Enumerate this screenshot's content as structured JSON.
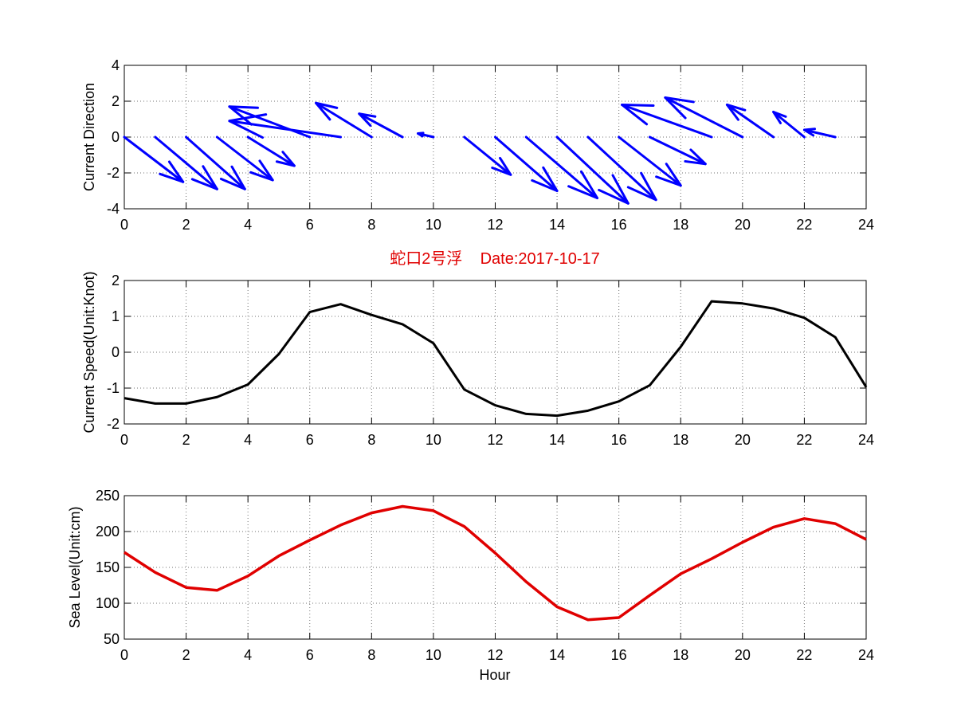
{
  "figure": {
    "title": "蛇口2号浮    Date:2017-10-17"
  },
  "colors": {
    "direction": "#0000ff",
    "speed": "#000000",
    "sealevel": "#e00000",
    "title": "#e00000"
  },
  "chart_data": [
    {
      "type": "quiver",
      "ylabel": "Current Direction",
      "xlabel": "",
      "xlim": [
        0,
        24
      ],
      "ylim": [
        -4,
        4
      ],
      "xticks": [
        0,
        2,
        4,
        6,
        8,
        10,
        12,
        14,
        16,
        18,
        20,
        22,
        24
      ],
      "yticks": [
        -4,
        -2,
        0,
        2,
        4
      ],
      "grid": true,
      "vectors": [
        {
          "x": 0,
          "u": 1.9,
          "v": -2.5
        },
        {
          "x": 1,
          "u": 2.0,
          "v": -2.9
        },
        {
          "x": 2,
          "u": 1.9,
          "v": -2.9
        },
        {
          "x": 3,
          "u": 1.8,
          "v": -2.4
        },
        {
          "x": 4,
          "u": 1.5,
          "v": -1.6
        },
        {
          "x": 5,
          "u": 0.0,
          "v": 0.0
        },
        {
          "x": 6,
          "u": -2.6,
          "v": 1.7
        },
        {
          "x": 7,
          "u": -3.6,
          "v": 0.9
        },
        {
          "x": 8,
          "u": -1.8,
          "v": 1.9
        },
        {
          "x": 9,
          "u": -1.4,
          "v": 1.3
        },
        {
          "x": 10,
          "u": -0.5,
          "v": 0.2
        },
        {
          "x": 11,
          "u": 1.5,
          "v": -2.1
        },
        {
          "x": 12,
          "u": 2.0,
          "v": -3.0
        },
        {
          "x": 13,
          "u": 2.3,
          "v": -3.4
        },
        {
          "x": 14,
          "u": 2.3,
          "v": -3.7
        },
        {
          "x": 15,
          "u": 2.2,
          "v": -3.5
        },
        {
          "x": 16,
          "u": 2.0,
          "v": -2.7
        },
        {
          "x": 17,
          "u": 1.8,
          "v": -1.5
        },
        {
          "x": 18,
          "u": 0.0,
          "v": 0.0
        },
        {
          "x": 19,
          "u": -2.9,
          "v": 1.8
        },
        {
          "x": 20,
          "u": -2.5,
          "v": 2.2
        },
        {
          "x": 21,
          "u": -1.5,
          "v": 1.8
        },
        {
          "x": 22,
          "u": -1.0,
          "v": 1.4
        },
        {
          "x": 23,
          "u": -1.0,
          "v": 0.4
        }
      ]
    },
    {
      "type": "line",
      "ylabel": "Current Speed(Unit:Knot)",
      "xlabel": "",
      "xlim": [
        0,
        24
      ],
      "ylim": [
        -2,
        2
      ],
      "xticks": [
        0,
        2,
        4,
        6,
        8,
        10,
        12,
        14,
        16,
        18,
        20,
        22,
        24
      ],
      "yticks": [
        -2,
        -1,
        0,
        1,
        2
      ],
      "grid": true,
      "x": [
        0,
        1,
        2,
        3,
        4,
        5,
        6,
        7,
        8,
        9,
        10,
        11,
        12,
        13,
        14,
        15,
        16,
        17,
        18,
        19,
        20,
        21,
        22,
        23,
        24
      ],
      "series": [
        {
          "values": [
            -1.28,
            -1.43,
            -1.43,
            -1.25,
            -0.9,
            -0.05,
            1.12,
            1.34,
            1.04,
            0.78,
            0.25,
            -1.04,
            -1.48,
            -1.72,
            -1.77,
            -1.63,
            -1.37,
            -0.92,
            0.15,
            1.42,
            1.36,
            1.22,
            0.96,
            0.42,
            -0.97
          ]
        }
      ]
    },
    {
      "type": "line",
      "ylabel": "Sea Level(Unit:cm)",
      "xlabel": "Hour",
      "xlim": [
        0,
        24
      ],
      "ylim": [
        50,
        250
      ],
      "xticks": [
        0,
        2,
        4,
        6,
        8,
        10,
        12,
        14,
        16,
        18,
        20,
        22,
        24
      ],
      "yticks": [
        50,
        100,
        150,
        200,
        250
      ],
      "grid": true,
      "x": [
        0,
        1,
        2,
        3,
        4,
        5,
        6,
        7,
        8,
        9,
        10,
        11,
        12,
        13,
        14,
        15,
        16,
        17,
        18,
        19,
        20,
        21,
        22,
        23,
        24
      ],
      "series": [
        {
          "values": [
            171,
            143,
            122,
            118,
            138,
            166,
            188,
            209,
            226,
            235,
            229,
            207,
            170,
            130,
            95,
            77,
            80,
            111,
            141,
            162,
            185,
            206,
            218,
            211,
            189
          ]
        }
      ]
    }
  ]
}
